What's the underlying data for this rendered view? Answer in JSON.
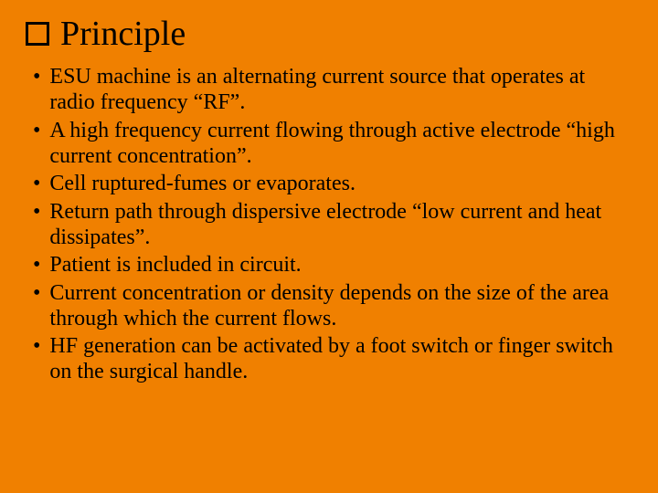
{
  "background_color": "#f08000",
  "text_color": "#000000",
  "font_family": "Times New Roman",
  "title": {
    "text": "Principle",
    "fontsize": 38,
    "icon": "checkbox-empty",
    "icon_border_color": "#000000",
    "icon_size": 26
  },
  "bullets": {
    "marker": "•",
    "fontsize": 24,
    "items": [
      "ESU machine is an alternating current source that operates at radio frequency “RF”.",
      "A high frequency current flowing through active electrode “high current concentration”.",
      "Cell ruptured-fumes or evaporates.",
      "Return path through dispersive electrode “low current and heat dissipates”.",
      "Patient is included in circuit.",
      "Current concentration or density depends on the size of the area through which the current flows.",
      "HF generation can be activated by a foot switch or finger switch on the surgical handle."
    ]
  }
}
